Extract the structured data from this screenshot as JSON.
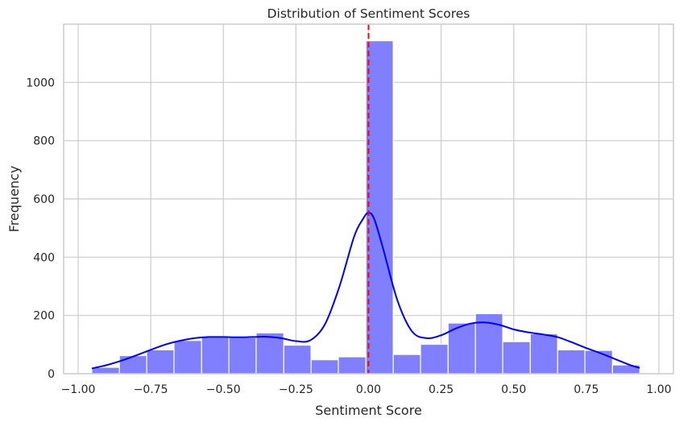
{
  "chart_data": {
    "type": "bar",
    "title": "Distribution of Sentiment Scores",
    "xlabel": "Sentiment Score",
    "ylabel": "Frequency",
    "xlim": [
      -1.05,
      1.05
    ],
    "ylim": [
      0,
      1200
    ],
    "xticks": [
      -1.0,
      -0.75,
      -0.5,
      -0.25,
      0.0,
      0.25,
      0.5,
      0.75,
      1.0
    ],
    "xtick_labels": [
      "−1.00",
      "−0.75",
      "−0.50",
      "−0.25",
      "0.00",
      "0.25",
      "0.50",
      "0.75",
      "1.00"
    ],
    "yticks": [
      0,
      200,
      400,
      600,
      800,
      1000
    ],
    "ytick_labels": [
      "0",
      "200",
      "400",
      "600",
      "800",
      "1000"
    ],
    "grid": true,
    "bin_edges": [
      -0.953,
      -0.858,
      -0.764,
      -0.67,
      -0.575,
      -0.481,
      -0.387,
      -0.292,
      -0.198,
      -0.104,
      -0.009,
      0.085,
      0.179,
      0.274,
      0.368,
      0.462,
      0.557,
      0.651,
      0.745,
      0.84,
      0.934
    ],
    "values": [
      22,
      62,
      82,
      114,
      125,
      124,
      140,
      98,
      48,
      58,
      1143,
      66,
      101,
      174,
      206,
      110,
      137,
      82,
      80,
      30
    ],
    "kde": {
      "x": [
        -0.953,
        -0.9,
        -0.85,
        -0.8,
        -0.75,
        -0.7,
        -0.65,
        -0.6,
        -0.55,
        -0.5,
        -0.45,
        -0.4,
        -0.35,
        -0.3,
        -0.25,
        -0.2,
        -0.15,
        -0.1,
        -0.05,
        -0.02,
        0.0,
        0.02,
        0.05,
        0.1,
        0.15,
        0.2,
        0.25,
        0.3,
        0.35,
        0.4,
        0.45,
        0.5,
        0.55,
        0.6,
        0.65,
        0.7,
        0.75,
        0.8,
        0.85,
        0.9,
        0.934
      ],
      "y": [
        18,
        30,
        45,
        63,
        82,
        100,
        113,
        122,
        126,
        126,
        125,
        126,
        127,
        122,
        112,
        115,
        170,
        300,
        470,
        530,
        553,
        530,
        430,
        250,
        145,
        122,
        132,
        155,
        172,
        176,
        168,
        152,
        142,
        135,
        126,
        108,
        88,
        70,
        50,
        30,
        20
      ]
    },
    "reference_line": {
      "x": 0.0,
      "color": "#ff0000",
      "style": "dashed"
    },
    "colors": {
      "bars": "#7f7fff",
      "bar_edge": "#ffffff",
      "kde": "#0000ff",
      "grid": "#cccccc",
      "axes": "#cccccc"
    }
  }
}
